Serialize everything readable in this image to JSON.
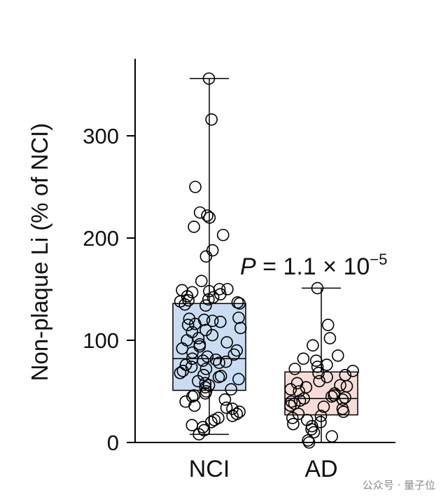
{
  "chart_data": {
    "type": "box",
    "ylabel": "Non-plaque Li (% of NCI)",
    "yticks": [
      0,
      100,
      200,
      300
    ],
    "ylim": [
      0,
      365
    ],
    "categories": [
      "NCI",
      "AD"
    ],
    "box_colors": {
      "NCI": "#c9dcf2",
      "AD": "#f6dcd8"
    },
    "groups": [
      {
        "name": "NCI",
        "whisker_low": 8,
        "q1": 51,
        "median": 82,
        "q3": 136,
        "whisker_high": 356,
        "points": [
          356,
          316,
          250,
          225,
          222,
          220,
          211,
          203,
          188,
          182,
          158,
          150,
          150,
          149,
          148,
          147,
          145,
          143,
          142,
          140,
          139,
          138,
          137,
          136,
          135,
          134,
          122,
          121,
          120,
          119,
          118,
          116,
          115,
          112,
          110,
          108,
          105,
          102,
          100,
          98,
          96,
          94,
          92,
          90,
          88,
          86,
          84,
          82,
          81,
          80,
          79,
          78,
          76,
          74,
          72,
          70,
          68,
          66,
          65,
          64,
          62,
          60,
          58,
          56,
          54,
          52,
          50,
          48,
          46,
          45,
          42,
          40,
          36,
          34,
          33,
          30,
          28,
          26,
          24,
          22,
          20,
          17,
          15,
          12,
          8
        ]
      },
      {
        "name": "AD",
        "whisker_low": 0,
        "q1": 27,
        "median": 43,
        "q3": 69,
        "whisker_high": 151,
        "points": [
          151,
          115,
          102,
          95,
          85,
          82,
          80,
          76,
          74,
          72,
          70,
          68,
          66,
          64,
          60,
          58,
          56,
          55,
          54,
          52,
          50,
          48,
          46,
          45,
          44,
          43,
          42,
          41,
          40,
          38,
          36,
          35,
          33,
          30,
          28,
          26,
          24,
          22,
          20,
          18,
          16,
          13,
          10,
          6,
          2,
          0
        ]
      }
    ],
    "annotation": {
      "prefix": "P",
      "text": " = 1.1 × 10",
      "exponent": "−5"
    }
  },
  "watermark": "公众号 · 量子位"
}
